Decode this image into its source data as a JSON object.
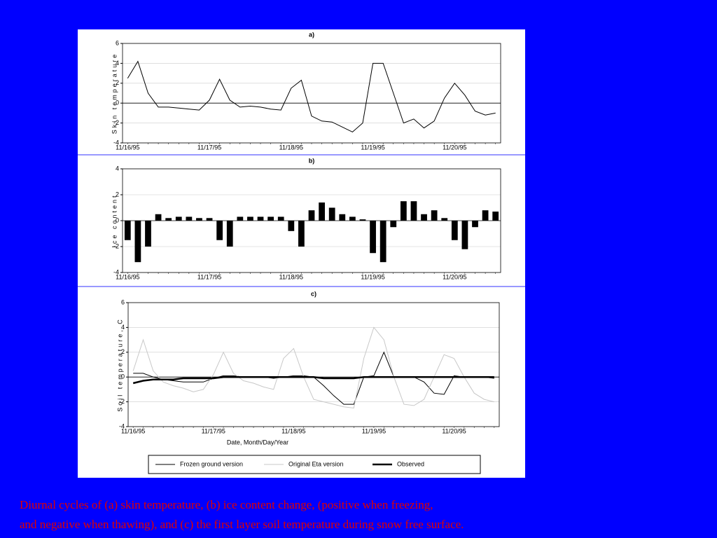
{
  "chart_data": [
    {
      "type": "line",
      "title": "a)",
      "ylabel": "Skin temperature",
      "color": "#000000",
      "categories": [
        "11/16/95",
        null,
        null,
        null,
        null,
        null,
        null,
        null,
        "11/17/95",
        null,
        null,
        null,
        null,
        null,
        null,
        null,
        "11/18/95",
        null,
        null,
        null,
        null,
        null,
        null,
        null,
        "11/19/95",
        null,
        null,
        null,
        null,
        null,
        null,
        null,
        "11/20/95",
        null,
        null,
        null,
        null
      ],
      "values": [
        2.5,
        4.2,
        1,
        -0.4,
        -0.4,
        -0.5,
        -0.6,
        -0.7,
        0.3,
        2.4,
        0.3,
        -0.4,
        -0.3,
        -0.4,
        -0.6,
        -0.7,
        1.5,
        2.3,
        -1.3,
        -1.8,
        -1.9,
        -2.4,
        -2.9,
        -2,
        4,
        4,
        1,
        -2,
        -1.6,
        -2.5,
        -1.8,
        0.5,
        2,
        0.8,
        -0.8,
        -1.2,
        -1
      ],
      "ylim": [
        -4,
        6
      ],
      "yticks": [
        -4,
        -2,
        0,
        2,
        4,
        6
      ],
      "grid": true
    },
    {
      "type": "bar",
      "title": "b)",
      "ylabel": "Ice content",
      "color": "#000000",
      "categories": [
        "11/16/95",
        null,
        null,
        null,
        null,
        null,
        null,
        null,
        "11/17/95",
        null,
        null,
        null,
        null,
        null,
        null,
        null,
        "11/18/95",
        null,
        null,
        null,
        null,
        null,
        null,
        null,
        "11/19/95",
        null,
        null,
        null,
        null,
        null,
        null,
        null,
        "11/20/95",
        null,
        null,
        null,
        null
      ],
      "values": [
        -1.5,
        -3.2,
        -2,
        0.5,
        0.2,
        0.3,
        0.3,
        0.2,
        0.2,
        -1.5,
        -2,
        0.3,
        0.3,
        0.3,
        0.3,
        0.3,
        -0.8,
        -2,
        0.8,
        1.4,
        1,
        0.5,
        0.3,
        0.1,
        -2.5,
        -3.2,
        -0.5,
        1.5,
        1.5,
        0.5,
        0.8,
        0.2,
        -1.5,
        -2.2,
        -0.5,
        0.8,
        0.7
      ],
      "ylim": [
        -4,
        4
      ],
      "yticks": [
        -4,
        -2,
        0,
        2,
        4
      ],
      "grid": true
    },
    {
      "type": "line",
      "title": "c)",
      "ylabel": "Soil temperature, C",
      "xlabel": "Date, Month/Day/Year",
      "categories": [
        "11/16/95",
        null,
        null,
        null,
        null,
        null,
        null,
        null,
        "11/17/95",
        null,
        null,
        null,
        null,
        null,
        null,
        null,
        "11/18/95",
        null,
        null,
        null,
        null,
        null,
        null,
        null,
        "11/19/95",
        null,
        null,
        null,
        null,
        null,
        null,
        null,
        "11/20/95",
        null,
        null,
        null,
        null
      ],
      "series": [
        {
          "name": "Frozen ground version",
          "color": "#000000",
          "line_width": 1,
          "values": [
            0.3,
            0.3,
            0,
            -0.2,
            -0.3,
            -0.4,
            -0.4,
            -0.4,
            -0.1,
            0.1,
            0.1,
            0,
            0,
            0,
            -0.1,
            0,
            0.1,
            0.1,
            0,
            -0.7,
            -1.5,
            -2.2,
            -2.2,
            0,
            0.1,
            2,
            0,
            0,
            0,
            -0.4,
            -1.3,
            -1.4,
            0.1,
            0,
            0,
            0,
            -0.1
          ]
        },
        {
          "name": "Original Eta version",
          "color": "#c8c8c8",
          "line_width": 1,
          "values": [
            0.5,
            3,
            0.5,
            -0.4,
            -0.7,
            -0.9,
            -1.2,
            -1,
            0.2,
            2,
            0.3,
            -0.3,
            -0.5,
            -0.8,
            -1,
            1.5,
            2.3,
            0,
            -1.8,
            -2,
            -2.2,
            -2.4,
            -2.5,
            1.5,
            4,
            3,
            0,
            -2.2,
            -2.3,
            -1.8,
            0,
            1.8,
            1.5,
            0,
            -1.3,
            -1.8,
            -2
          ]
        },
        {
          "name": "Observed",
          "color": "#000000",
          "line_width": 2.5,
          "values": [
            -0.5,
            -0.3,
            -0.2,
            -0.2,
            -0.2,
            -0.1,
            -0.1,
            -0.1,
            -0.1,
            0,
            0,
            0,
            0,
            0,
            0,
            0,
            0,
            0,
            0,
            -0.1,
            -0.1,
            -0.1,
            -0.1,
            0,
            0,
            0,
            0,
            0,
            0,
            0,
            0,
            0,
            0,
            0,
            0,
            0,
            0
          ]
        }
      ],
      "ylim": [
        -4,
        6
      ],
      "yticks": [
        -4,
        -2,
        0,
        2,
        4,
        6
      ],
      "grid": true
    }
  ],
  "caption": [
    "Diurnal cycles of (a) skin temperature, (b) ice content change, (positive when freezing,",
    "and negative when thawing), and (c) the first layer soil temperature during snow free surface."
  ]
}
